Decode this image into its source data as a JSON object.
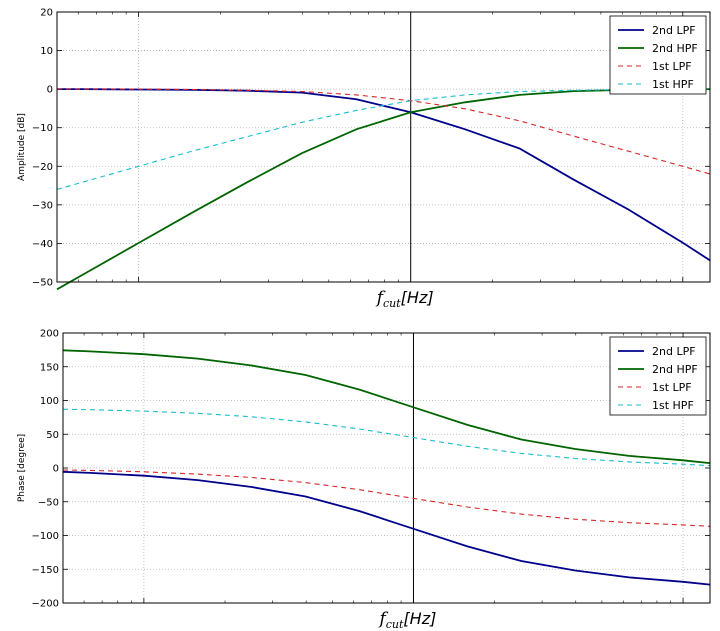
{
  "chart_data": [
    {
      "type": "line",
      "ylabel": "Amplitude [dB]",
      "xlabel_symbol": "f",
      "xlabel_sub": "cut",
      "xlabel_unit": "[Hz]",
      "ylim": [
        -50,
        20
      ],
      "yticks": [
        20,
        10,
        0,
        -10,
        -20,
        -30,
        -40,
        -50
      ],
      "ytick_labels": [
        "20",
        "10",
        "0",
        "−10",
        "−20",
        "−30",
        "−40",
        "−50"
      ],
      "xlim_log_decades": [
        -1.3,
        1.1
      ],
      "x_cutoff": 0,
      "grid": true,
      "legend_position": "top-right",
      "series": [
        {
          "name": "2nd LPF",
          "color": "#00008b",
          "dash": "solid",
          "x": [
            -1.3,
            -1.2,
            -1.0,
            -0.8,
            -0.6,
            -0.4,
            -0.2,
            0.0,
            0.2,
            0.4,
            0.6,
            0.8,
            1.0,
            1.1
          ],
          "y": [
            -0.0,
            -0.0,
            -0.1,
            -0.2,
            -0.4,
            -0.9,
            -2.6,
            -6.0,
            -10.4,
            -15.4,
            -23.5,
            -31.2,
            -39.8,
            -44.4
          ]
        },
        {
          "name": "2nd HPF",
          "color": "#006400",
          "dash": "solid",
          "x": [
            -1.3,
            -1.2,
            -1.0,
            -0.8,
            -0.6,
            -0.4,
            -0.2,
            0.0,
            0.2,
            0.4,
            0.6,
            0.8,
            1.0,
            1.1
          ],
          "y": [
            -51.9,
            -47.9,
            -39.9,
            -31.9,
            -24.1,
            -16.6,
            -10.4,
            -6.0,
            -3.4,
            -1.5,
            -0.5,
            -0.2,
            -0.1,
            -0.0
          ]
        },
        {
          "name": "1st LPF",
          "color": "#d62728",
          "dash": "dashed",
          "x": [
            -1.3,
            -1.2,
            -1.0,
            -0.8,
            -0.6,
            -0.4,
            -0.2,
            0.0,
            0.2,
            0.4,
            0.6,
            0.8,
            1.0,
            1.1
          ],
          "y": [
            -0.0,
            -0.0,
            -0.0,
            -0.1,
            -0.3,
            -0.6,
            -1.5,
            -3.0,
            -5.1,
            -8.2,
            -12.2,
            -16.1,
            -20.0,
            -22.0
          ]
        },
        {
          "name": "1st HPF",
          "color": "#17becf",
          "dash": "dashed",
          "x": [
            -1.3,
            -1.2,
            -1.0,
            -0.8,
            -0.6,
            -0.4,
            -0.2,
            0.0,
            0.2,
            0.4,
            0.6,
            0.8,
            1.0,
            1.1
          ],
          "y": [
            -26.0,
            -24.0,
            -20.0,
            -16.0,
            -12.3,
            -8.6,
            -5.5,
            -3.0,
            -1.5,
            -0.6,
            -0.3,
            -0.1,
            -0.0,
            -0.0
          ]
        }
      ]
    },
    {
      "type": "line",
      "ylabel": "Phase [degree]",
      "xlabel_symbol": "f",
      "xlabel_sub": "cut",
      "xlabel_unit": "[Hz]",
      "ylim": [
        -200,
        200
      ],
      "yticks": [
        200,
        150,
        100,
        50,
        0,
        -50,
        -100,
        -150,
        -200
      ],
      "ytick_labels": [
        "200",
        "150",
        "100",
        "50",
        "0",
        "−50",
        "−100",
        "−150",
        "−200"
      ],
      "xlim_log_decades": [
        -1.3,
        1.1
      ],
      "x_cutoff": 0,
      "grid": true,
      "legend_position": "top-right",
      "series": [
        {
          "name": "2nd LPF",
          "color": "#00008b",
          "dash": "solid",
          "x": [
            -1.3,
            -1.2,
            -1.0,
            -0.8,
            -0.6,
            -0.4,
            -0.2,
            0.0,
            0.2,
            0.4,
            0.6,
            0.8,
            1.0,
            1.1
          ],
          "y": [
            -5.7,
            -7.2,
            -11.4,
            -18.0,
            -28.2,
            -42.2,
            -63.9,
            -90.0,
            -116.1,
            -137.8,
            -151.8,
            -162.0,
            -168.6,
            -172.8
          ]
        },
        {
          "name": "2nd HPF",
          "color": "#006400",
          "dash": "solid",
          "x": [
            -1.3,
            -1.2,
            -1.0,
            -0.8,
            -0.6,
            -0.4,
            -0.2,
            0.0,
            0.2,
            0.4,
            0.6,
            0.8,
            1.0,
            1.1
          ],
          "y": [
            174.3,
            172.8,
            168.6,
            162.0,
            151.8,
            137.8,
            116.1,
            90.0,
            63.9,
            42.2,
            28.2,
            18.0,
            11.4,
            7.2
          ]
        },
        {
          "name": "1st LPF",
          "color": "#d62728",
          "dash": "dashed",
          "x": [
            -1.3,
            -1.2,
            -1.0,
            -0.8,
            -0.6,
            -0.4,
            -0.2,
            0.0,
            0.2,
            0.4,
            0.6,
            0.8,
            1.0,
            1.1
          ],
          "y": [
            -2.9,
            -3.6,
            -5.7,
            -9.0,
            -14.1,
            -21.7,
            -32.2,
            -45.0,
            -57.8,
            -68.3,
            -75.9,
            -81.0,
            -84.3,
            -86.4
          ]
        },
        {
          "name": "1st HPF",
          "color": "#17becf",
          "dash": "dashed",
          "x": [
            -1.3,
            -1.2,
            -1.0,
            -0.8,
            -0.6,
            -0.4,
            -0.2,
            0.0,
            0.2,
            0.4,
            0.6,
            0.8,
            1.0,
            1.1
          ],
          "y": [
            87.1,
            86.4,
            84.3,
            81.0,
            75.9,
            68.3,
            57.8,
            45.0,
            32.2,
            21.7,
            14.1,
            9.0,
            5.7,
            3.6
          ]
        }
      ]
    }
  ]
}
